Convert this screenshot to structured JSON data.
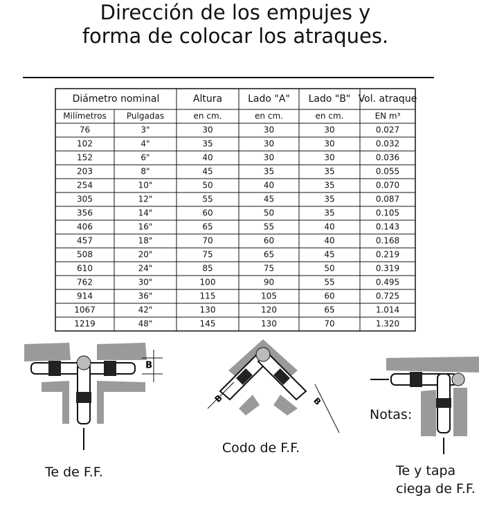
{
  "title": {
    "lines": [
      "Dirección de los empujes y",
      "forma de colocar los atraques."
    ]
  },
  "table": {
    "header": [
      "Diámetro nominal",
      "Altura",
      "Lado \"A\"",
      "Lado \"B\"",
      "Vol. atraque"
    ],
    "subheader": [
      "Milímetros",
      "Pulgadas",
      "en cm.",
      "en cm.",
      "en cm.",
      "EN m³"
    ],
    "rows": [
      [
        "76",
        "3\"",
        "30",
        "30",
        "30",
        "0.027"
      ],
      [
        "102",
        "4\"",
        "35",
        "30",
        "30",
        "0.032"
      ],
      [
        "152",
        "6\"",
        "40",
        "30",
        "30",
        "0.036"
      ],
      [
        "203",
        "8\"",
        "45",
        "35",
        "35",
        "0.055"
      ],
      [
        "254",
        "10\"",
        "50",
        "40",
        "35",
        "0.070"
      ],
      [
        "305",
        "12\"",
        "55",
        "45",
        "35",
        "0.087"
      ],
      [
        "356",
        "14\"",
        "60",
        "50",
        "35",
        "0.105"
      ],
      [
        "406",
        "16\"",
        "65",
        "55",
        "40",
        "0.143"
      ],
      [
        "457",
        "18\"",
        "70",
        "60",
        "40",
        "0.168"
      ],
      [
        "508",
        "20\"",
        "75",
        "65",
        "45",
        "0.219"
      ],
      [
        "610",
        "24\"",
        "85",
        "75",
        "50",
        "0.319"
      ],
      [
        "762",
        "30\"",
        "100",
        "90",
        "55",
        "0.495"
      ],
      [
        "914",
        "36\"",
        "115",
        "105",
        "60",
        "0.725"
      ],
      [
        "1067",
        "42\"",
        "130",
        "120",
        "65",
        "1.014"
      ],
      [
        "1219",
        "48\"",
        "145",
        "130",
        "70",
        "1.320"
      ]
    ]
  },
  "diagrams": [
    {
      "label": "Te de F.F.",
      "dimension": "B"
    },
    {
      "label": "Codo de F.F.",
      "dimension": "B"
    },
    {
      "label": [
        "Te y tapa",
        "ciega de F.F."
      ],
      "note": "Notas:"
    }
  ]
}
